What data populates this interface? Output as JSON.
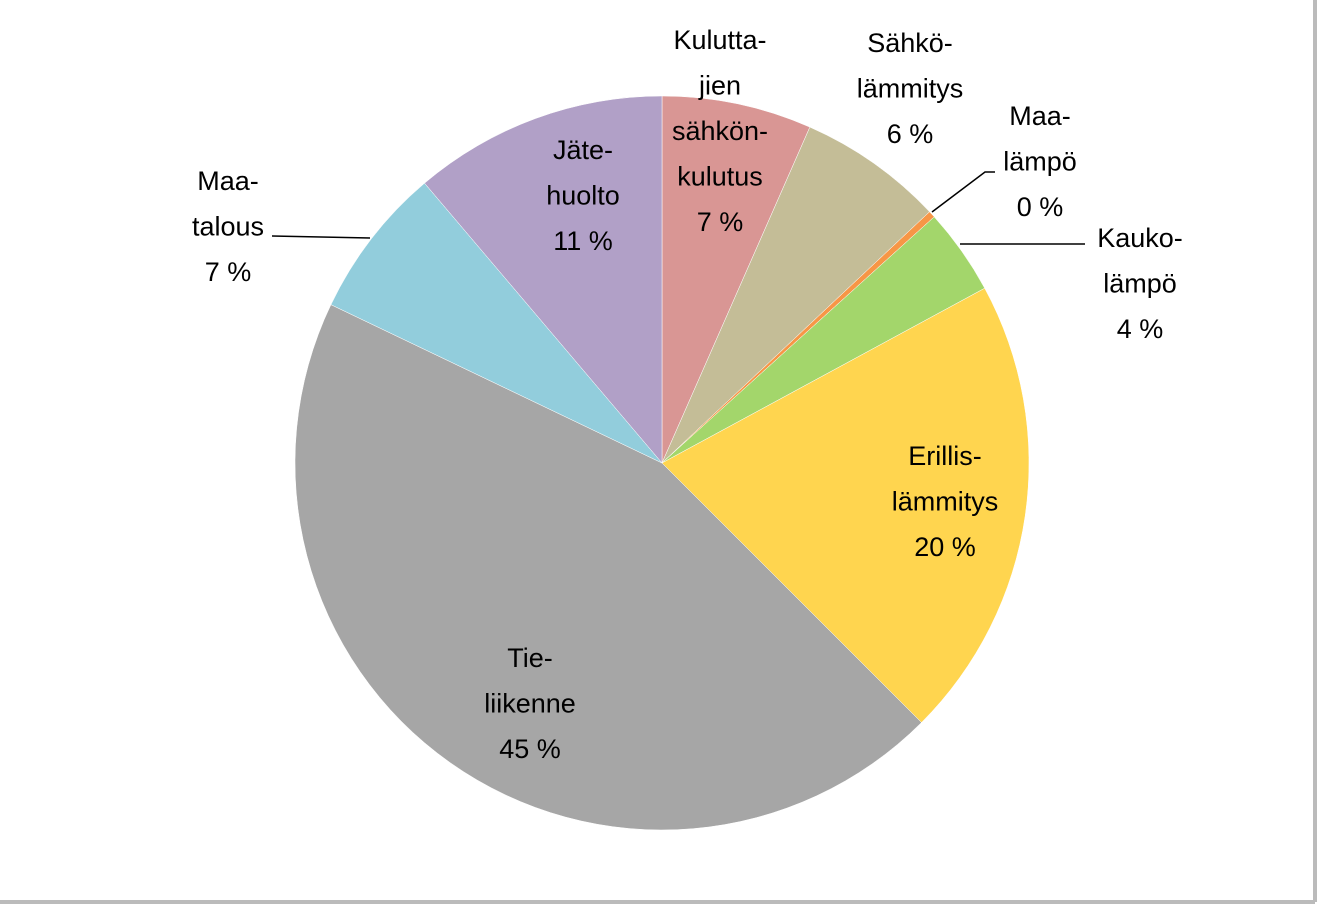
{
  "chart_data": {
    "type": "pie",
    "categories": [
      [
        "Kulutta-",
        "jien",
        "sähkön-",
        "kulutus"
      ],
      [
        "Sähkö-",
        "lämmitys"
      ],
      [
        "Maa-",
        "lämpö"
      ],
      [
        "Kauko-",
        "lämpö"
      ],
      [
        "Erillis-",
        "lämmitys"
      ],
      [
        "Tie-",
        "liikenne"
      ],
      [
        "Maa-",
        "talous"
      ],
      [
        "Jäte-",
        "huolto"
      ]
    ],
    "values": [
      6.6,
      6.4,
      0.3,
      3.8,
      20.4,
      44.6,
      6.7,
      11.2
    ],
    "value_labels": [
      "7 %",
      "6 %",
      "0 %",
      "4 %",
      "20 %",
      "45 %",
      "7 %",
      "11 %"
    ],
    "colors": [
      "#d99694",
      "#c4bd97",
      "#f79646",
      "#a3d66b",
      "#ffd54f",
      "#a6a6a6",
      "#92cddc",
      "#b1a0c7"
    ]
  }
}
